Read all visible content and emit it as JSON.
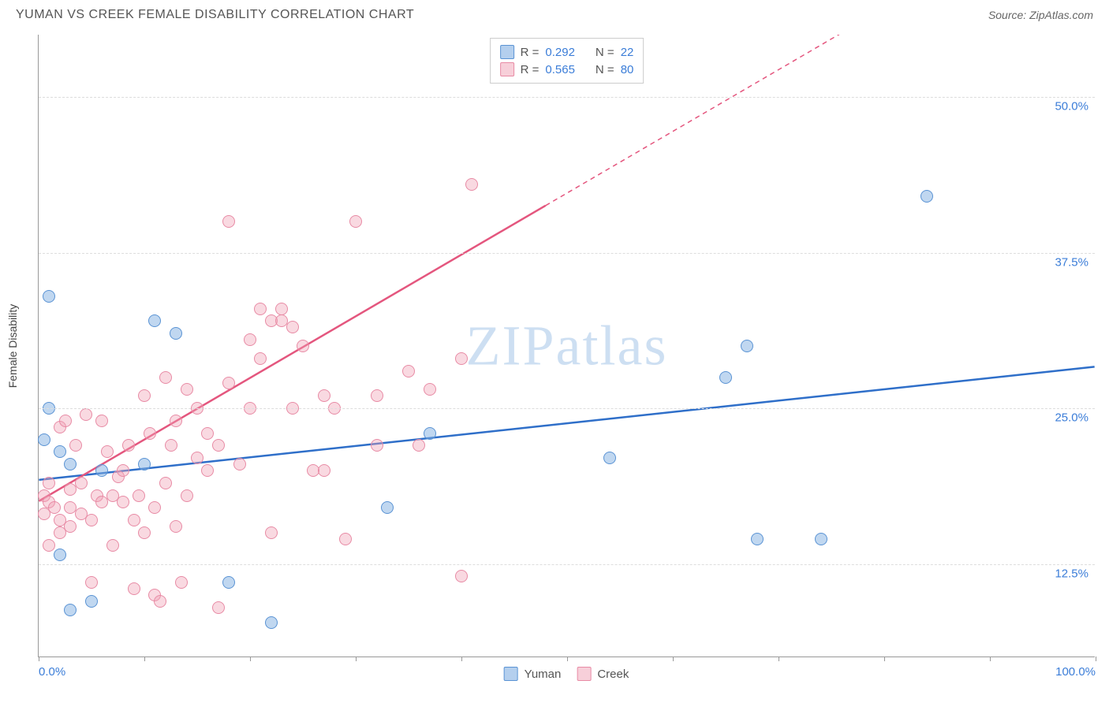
{
  "header": {
    "title": "YUMAN VS CREEK FEMALE DISABILITY CORRELATION CHART",
    "source": "Source: ZipAtlas.com"
  },
  "chart": {
    "type": "scatter",
    "watermark": "ZIPatlas",
    "ylabel": "Female Disability",
    "xlim": [
      0,
      100
    ],
    "ylim": [
      5,
      55
    ],
    "y_gridlines": [
      12.5,
      25.0,
      37.5,
      50.0
    ],
    "y_ticklabels": [
      "12.5%",
      "25.0%",
      "37.5%",
      "50.0%"
    ],
    "x_ticks": [
      0,
      10,
      20,
      30,
      40,
      50,
      60,
      70,
      80,
      90,
      100
    ],
    "x_ticklabels_shown": {
      "0": "0.0%",
      "100": "100.0%"
    },
    "background_color": "#ffffff",
    "grid_color": "#dddddd",
    "axis_color": "#999999",
    "marker_size": 16,
    "series": [
      {
        "name": "Yuman",
        "color_fill": "rgba(130,175,226,0.5)",
        "color_stroke": "#5a93d4",
        "trend_color": "#2f6fc9",
        "trend_start": [
          0,
          19.2
        ],
        "trend_end": [
          100,
          28.3
        ],
        "trend_dashed_from": null,
        "R": "0.292",
        "N": "22",
        "points": [
          [
            1,
            34
          ],
          [
            11,
            32
          ],
          [
            1,
            25
          ],
          [
            0.5,
            22.5
          ],
          [
            2,
            21.5
          ],
          [
            13,
            31
          ],
          [
            3,
            20.5
          ],
          [
            6,
            20
          ],
          [
            10,
            20.5
          ],
          [
            2,
            13.2
          ],
          [
            3,
            8.8
          ],
          [
            5,
            9.5
          ],
          [
            18,
            11
          ],
          [
            33,
            17
          ],
          [
            37,
            23
          ],
          [
            84,
            42
          ],
          [
            54,
            21
          ],
          [
            65,
            27.5
          ],
          [
            67,
            30
          ],
          [
            68,
            14.5
          ],
          [
            74,
            14.5
          ],
          [
            22,
            7.8
          ]
        ]
      },
      {
        "name": "Creek",
        "color_fill": "rgba(240,160,180,0.4)",
        "color_stroke": "#e88ba5",
        "trend_color": "#e4567e",
        "trend_start": [
          0,
          17.5
        ],
        "trend_end": [
          100,
          67
        ],
        "trend_dashed_from": 48,
        "R": "0.565",
        "N": "80",
        "points": [
          [
            0.5,
            18
          ],
          [
            1,
            17.5
          ],
          [
            1.5,
            17
          ],
          [
            2,
            16
          ],
          [
            2,
            23.5
          ],
          [
            2.5,
            24
          ],
          [
            3,
            18.5
          ],
          [
            3,
            17
          ],
          [
            3.5,
            22
          ],
          [
            4,
            19
          ],
          [
            4,
            16.5
          ],
          [
            4.5,
            24.5
          ],
          [
            5,
            11
          ],
          [
            5,
            16
          ],
          [
            5.5,
            18
          ],
          [
            6,
            17.5
          ],
          [
            6,
            24
          ],
          [
            6.5,
            21.5
          ],
          [
            7,
            18
          ],
          [
            7,
            14
          ],
          [
            7.5,
            19.5
          ],
          [
            8,
            20
          ],
          [
            8,
            17.5
          ],
          [
            8.5,
            22
          ],
          [
            9,
            16
          ],
          [
            9,
            10.5
          ],
          [
            9.5,
            18
          ],
          [
            10,
            26
          ],
          [
            10,
            15
          ],
          [
            10.5,
            23
          ],
          [
            11,
            10
          ],
          [
            11,
            17
          ],
          [
            11.5,
            9.5
          ],
          [
            12,
            19
          ],
          [
            12,
            27.5
          ],
          [
            12.5,
            22
          ],
          [
            13,
            15.5
          ],
          [
            13,
            24
          ],
          [
            13.5,
            11
          ],
          [
            14,
            26.5
          ],
          [
            14,
            18
          ],
          [
            15,
            21
          ],
          [
            15,
            25
          ],
          [
            16,
            20
          ],
          [
            16,
            23
          ],
          [
            17,
            9
          ],
          [
            17,
            22
          ],
          [
            18,
            27
          ],
          [
            18,
            40
          ],
          [
            19,
            20.5
          ],
          [
            20,
            30.5
          ],
          [
            20,
            25
          ],
          [
            21,
            33
          ],
          [
            21,
            29
          ],
          [
            22,
            32
          ],
          [
            22,
            15
          ],
          [
            23,
            33
          ],
          [
            23,
            32
          ],
          [
            24,
            31.5
          ],
          [
            24,
            25
          ],
          [
            25,
            30
          ],
          [
            26,
            20
          ],
          [
            27,
            20
          ],
          [
            27,
            26
          ],
          [
            28,
            25
          ],
          [
            29,
            14.5
          ],
          [
            30,
            40
          ],
          [
            32,
            26
          ],
          [
            32,
            22
          ],
          [
            35,
            28
          ],
          [
            36,
            22
          ],
          [
            37,
            26.5
          ],
          [
            40,
            29
          ],
          [
            41,
            43
          ],
          [
            40,
            11.5
          ],
          [
            2,
            15
          ],
          [
            1,
            14
          ],
          [
            0.5,
            16.5
          ],
          [
            3,
            15.5
          ],
          [
            1,
            19
          ]
        ]
      }
    ],
    "legend_top": {
      "rows": [
        {
          "swatch": "blue",
          "R_label": "R =",
          "R_val": "0.292",
          "N_label": "N =",
          "N_val": "22"
        },
        {
          "swatch": "pink",
          "R_label": "R =",
          "R_val": "0.565",
          "N_label": "N =",
          "N_val": "80"
        }
      ]
    },
    "legend_bottom": [
      {
        "swatch": "blue",
        "label": "Yuman"
      },
      {
        "swatch": "pink",
        "label": "Creek"
      }
    ]
  }
}
